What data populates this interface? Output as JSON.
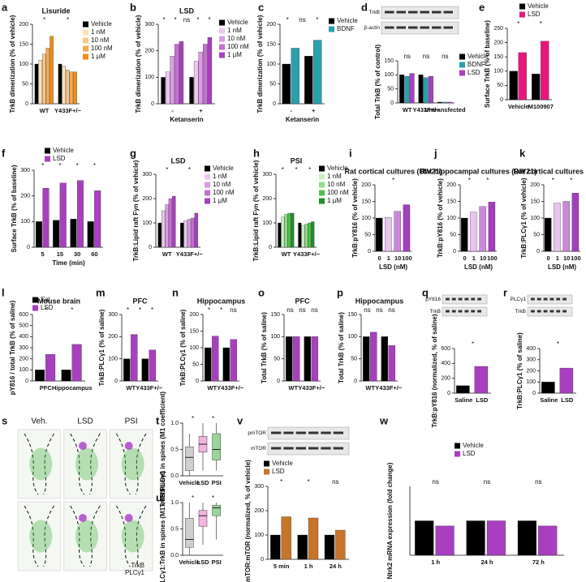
{
  "chart_data": [
    {
      "panel": "a",
      "type": "bar",
      "title": "Lisuride",
      "title_color": "#f28c1a",
      "ylabel": "TrkB dimerization (% of vehicle)",
      "categories": [
        "WT",
        "Y433F+/−"
      ],
      "series": [
        {
          "name": "Vehicle",
          "color": "#000000",
          "values": [
            100,
            100
          ]
        },
        {
          "name": "1 nM",
          "color": "#fde2b8",
          "values": [
            110,
            95
          ]
        },
        {
          "name": "10 nM",
          "color": "#fbc88a",
          "values": [
            125,
            85
          ]
        },
        {
          "name": "100 nM",
          "color": "#f7a94e",
          "values": [
            140,
            80
          ]
        },
        {
          "name": "1 µM",
          "color": "#f28c1a",
          "values": [
            170,
            80
          ]
        }
      ],
      "ylim": [
        0,
        200
      ],
      "yticks": [
        0,
        50,
        100,
        150,
        200
      ],
      "annotations": [
        "*",
        "*"
      ]
    },
    {
      "panel": "b",
      "type": "bar",
      "title": "LSD",
      "title_color": "#a020c0",
      "ylabel": "TrkB dimerization (% of vehicle)",
      "xlabel": "Ketanserin",
      "xlabel_color": "#d0202a",
      "categories": [
        "-",
        "+"
      ],
      "series": [
        {
          "name": "Vehicle",
          "color": "#000000",
          "values": [
            100,
            100
          ]
        },
        {
          "name": "1 nM",
          "color": "#ecc8f0",
          "values": [
            120,
            160
          ]
        },
        {
          "name": "10 nM",
          "color": "#dc9be4",
          "values": [
            180,
            195
          ]
        },
        {
          "name": "100 nM",
          "color": "#c66fd4",
          "values": [
            225,
            225
          ]
        },
        {
          "name": "1 µM",
          "color": "#a83fbf",
          "values": [
            235,
            250
          ]
        }
      ],
      "ylim": [
        0,
        300
      ],
      "yticks": [
        0,
        100,
        200,
        300
      ],
      "annotations": [
        "*",
        "*",
        "ns",
        "*",
        "*"
      ]
    },
    {
      "panel": "c",
      "type": "bar",
      "ylabel": "TrkB dimerization (% of vehicle)",
      "xlabel": "Ketanserin",
      "xlabel_color": "#d0202a",
      "categories": [
        "-",
        "+"
      ],
      "series": [
        {
          "name": "Vehicle",
          "color": "#000000",
          "values": [
            100,
            120
          ]
        },
        {
          "name": "BDNF",
          "color": "#2a9fae",
          "values": [
            140,
            160
          ]
        }
      ],
      "ylim": [
        0,
        200
      ],
      "yticks": [
        0,
        50,
        100,
        150,
        200
      ],
      "annotations": [
        "*",
        "ns",
        "*"
      ]
    },
    {
      "panel": "d",
      "type": "bar",
      "ylabel": "Total TrkB (% of control)",
      "blot_labels": [
        "TrkB",
        "β-actin"
      ],
      "categories": [
        "WT",
        "Y433F+/−",
        "Untransfected"
      ],
      "series": [
        {
          "name": "Vehicle",
          "color": "#000000",
          "values": [
            100,
            100,
            3
          ]
        },
        {
          "name": "BDNF",
          "color": "#2a9fae",
          "values": [
            95,
            90,
            3
          ]
        },
        {
          "name": "LSD",
          "color": "#a83fbf",
          "values": [
            105,
            95,
            3
          ]
        }
      ],
      "ylim": [
        0,
        150
      ],
      "yticks": [
        0,
        50,
        100,
        150
      ],
      "annotations": [
        "ns",
        "ns",
        "ns"
      ]
    },
    {
      "panel": "e",
      "type": "bar",
      "ylabel": "Surface TrkB (% of baseline)",
      "categories": [
        "Vehicle",
        "M100907"
      ],
      "series": [
        {
          "name": "Vehicle",
          "color": "#000000",
          "values": [
            100,
            90
          ]
        },
        {
          "name": "LSD",
          "color": "#e6177a",
          "values": [
            165,
            205
          ]
        }
      ],
      "ylim": [
        0,
        250
      ],
      "yticks": [
        0,
        50,
        100,
        150,
        200,
        250
      ],
      "annotations": [
        "*",
        "*"
      ]
    },
    {
      "panel": "f",
      "type": "bar",
      "ylabel": "Surface TrkB (% of baseline)",
      "xlabel": "Time (min)",
      "categories": [
        "5",
        "15",
        "30",
        "60"
      ],
      "series": [
        {
          "name": "Vehicle",
          "color": "#000000",
          "values": [
            100,
            105,
            110,
            100
          ]
        },
        {
          "name": "LSD",
          "color": "#a83fbf",
          "values": [
            230,
            250,
            260,
            220
          ]
        }
      ],
      "ylim": [
        0,
        300
      ],
      "yticks": [
        0,
        100,
        200,
        300
      ],
      "annotations": [
        "*",
        "*",
        "*",
        "*"
      ]
    },
    {
      "panel": "g",
      "type": "bar",
      "title": "LSD",
      "title_color": "#a020c0",
      "ylabel": "TrkB:Lipid raft Fyn (% of vehicle)",
      "categories": [
        "WT",
        "Y433F+/−"
      ],
      "series": [
        {
          "name": "Vehicle",
          "color": "#000000",
          "values": [
            100,
            100
          ]
        },
        {
          "name": "1 nM",
          "color": "#ecc8f0",
          "values": [
            150,
            110
          ]
        },
        {
          "name": "10 nM",
          "color": "#dc9be4",
          "values": [
            175,
            115
          ]
        },
        {
          "name": "100 nM",
          "color": "#c66fd4",
          "values": [
            200,
            120
          ]
        },
        {
          "name": "1 µM",
          "color": "#a83fbf",
          "values": [
            210,
            140
          ]
        }
      ],
      "ylim": [
        0,
        300
      ],
      "yticks": [
        0,
        100,
        200,
        300
      ],
      "annotations": [
        "*",
        "*"
      ]
    },
    {
      "panel": "h",
      "type": "bar",
      "title": "PSI",
      "title_color": "#2a9a2a",
      "ylabel": "TrkB:Lipid raft Fyn (% of vehicle)",
      "categories": [
        "WT",
        "Y433F+/−"
      ],
      "series": [
        {
          "name": "Vehicle",
          "color": "#000000",
          "values": [
            100,
            100
          ]
        },
        {
          "name": "1 nM",
          "color": "#c9efc2",
          "values": [
            125,
            90
          ]
        },
        {
          "name": "10 nM",
          "color": "#8ede84",
          "values": [
            135,
            95
          ]
        },
        {
          "name": "100 nM",
          "color": "#4cc14a",
          "values": [
            140,
            100
          ]
        },
        {
          "name": "1 µM",
          "color": "#1f8f2a",
          "values": [
            140,
            105
          ]
        }
      ],
      "ylim": [
        0,
        300
      ],
      "yticks": [
        0,
        100,
        200,
        300
      ],
      "annotations": [
        "*",
        "*",
        "*"
      ]
    },
    {
      "panel": "i",
      "type": "bar",
      "title": "Rat cortical cultures (DIV21)",
      "ylabel": "TrkB:pY816 (% of vehicle)",
      "xlabel": "LSD (nM)",
      "categories": [
        "0",
        "1",
        "10",
        "100"
      ],
      "series": [
        {
          "colors": [
            "#000000",
            "#e8c4ef",
            "#cc88db",
            "#a23ebf"
          ],
          "values": [
            100,
            102,
            120,
            140
          ]
        }
      ],
      "ylim": [
        0,
        200
      ],
      "yticks": [
        0,
        50,
        100,
        150,
        200
      ],
      "annotations": [
        "*"
      ]
    },
    {
      "panel": "j",
      "type": "bar",
      "title": "Rat hippocampal cultures (DIV21)",
      "ylabel": "TrkB:pY816 (% of vehicle)",
      "xlabel": "LSD (nM)",
      "categories": [
        "0",
        "1",
        "10",
        "100"
      ],
      "series": [
        {
          "colors": [
            "#000000",
            "#e8c4ef",
            "#cc88db",
            "#a23ebf"
          ],
          "values": [
            100,
            118,
            135,
            148
          ]
        }
      ],
      "ylim": [
        0,
        200
      ],
      "yticks": [
        0,
        50,
        100,
        150,
        200
      ],
      "annotations": [
        "*",
        "*"
      ]
    },
    {
      "panel": "k",
      "type": "bar",
      "title": "Rat cortical cultures (DIV21)",
      "ylabel": "TrkB:PLCγ1 (% of vehicle)",
      "xlabel": "LSD (nM)",
      "categories": [
        "0",
        "1",
        "10",
        "100"
      ],
      "series": [
        {
          "colors": [
            "#000000",
            "#e8c4ef",
            "#cc88db",
            "#a23ebf"
          ],
          "values": [
            100,
            145,
            150,
            175
          ]
        }
      ],
      "ylim": [
        0,
        200
      ],
      "yticks": [
        0,
        50,
        100,
        150,
        200
      ],
      "annotations": [
        "*",
        "*"
      ]
    },
    {
      "panel": "l",
      "type": "bar",
      "title": "Mouse brain",
      "ylabel": "pY816 / total TrkB (% of saline)",
      "categories": [
        "PFC",
        "Hippocampus"
      ],
      "series": [
        {
          "name": "Sal.",
          "color": "#000000",
          "values": [
            100,
            100
          ]
        },
        {
          "name": "LSD",
          "color": "#a83fbf",
          "values": [
            240,
            330
          ]
        }
      ],
      "ylim": [
        0,
        600
      ],
      "yticks": [
        0,
        100,
        200,
        300,
        400,
        500,
        600
      ],
      "annotations": [
        "*",
        "*"
      ]
    },
    {
      "panel": "m",
      "type": "bar",
      "title": "PFC",
      "ylabel": "TrkB:PLCγ1 (% of saline)",
      "categories": [
        "WT",
        "Y433F+/−"
      ],
      "series": [
        {
          "color": "#000000",
          "values": [
            100,
            100
          ]
        },
        {
          "color": "#a83fbf",
          "values": [
            210,
            140
          ]
        }
      ],
      "ylim": [
        0,
        300
      ],
      "yticks": [
        0,
        100,
        200,
        300
      ],
      "annotations": [
        "*",
        "*",
        "*"
      ]
    },
    {
      "panel": "n",
      "type": "bar",
      "title": "Hippocampus",
      "ylabel": "TrkB:PLCγ1 (% of saline)",
      "categories": [
        "WT",
        "Y433F+/−"
      ],
      "series": [
        {
          "color": "#000000",
          "values": [
            100,
            100
          ]
        },
        {
          "color": "#a83fbf",
          "values": [
            135,
            125
          ]
        }
      ],
      "ylim": [
        0,
        200
      ],
      "yticks": [
        0,
        50,
        100,
        150,
        200
      ],
      "annotations": [
        "*",
        "*",
        "ns"
      ]
    },
    {
      "panel": "o",
      "type": "bar",
      "title": "PFC",
      "ylabel": "Total TrkB (% of saline)",
      "categories": [
        "WT",
        "Y433F+/−"
      ],
      "series": [
        {
          "color": "#000000",
          "values": [
            100,
            100
          ]
        },
        {
          "color": "#a83fbf",
          "values": [
            100,
            100
          ]
        }
      ],
      "ylim": [
        0,
        150
      ],
      "yticks": [
        0,
        50,
        100,
        150
      ],
      "annotations": [
        "ns",
        "ns",
        "ns"
      ]
    },
    {
      "panel": "p",
      "type": "bar",
      "title": "Hippocampus",
      "ylabel": "Total TrkB (% of saline)",
      "categories": [
        "WT",
        "Y433F+/−"
      ],
      "series": [
        {
          "color": "#000000",
          "values": [
            100,
            100
          ]
        },
        {
          "color": "#a83fbf",
          "values": [
            110,
            80
          ]
        }
      ],
      "ylim": [
        0,
        150
      ],
      "yticks": [
        0,
        50,
        100,
        150
      ],
      "annotations": [
        "ns",
        "ns",
        "ns"
      ]
    },
    {
      "panel": "q",
      "type": "bar",
      "ylabel": "TrkB:pY816 (normalized, % of saline)",
      "blot_labels": [
        "pY816",
        "TrkB"
      ],
      "categories": [
        "Saline",
        "LSD"
      ],
      "series": [
        {
          "colors": [
            "#000000",
            "#a83fbf"
          ],
          "values": [
            100,
            360
          ]
        }
      ],
      "ylim": [
        0,
        600
      ],
      "yticks": [
        0,
        200,
        400,
        600
      ],
      "annotations": [
        "*"
      ]
    },
    {
      "panel": "r",
      "type": "bar",
      "ylabel": "TrkB:PLCγ1 (% of saline)",
      "blot_labels": [
        "PLCγ1",
        "TrkB"
      ],
      "categories": [
        "Saline",
        "LSD"
      ],
      "series": [
        {
          "colors": [
            "#000000",
            "#a83fbf"
          ],
          "values": [
            100,
            225
          ]
        }
      ],
      "ylim": [
        0,
        400
      ],
      "yticks": [
        0,
        100,
        200,
        300,
        400
      ],
      "annotations": [
        "*"
      ]
    },
    {
      "panel": "s",
      "type": "image",
      "columns": [
        "Veh.",
        "LSD",
        "PSI"
      ],
      "channels": [
        {
          "name": "TrkB",
          "color": "#3fae3f"
        },
        {
          "name": "PLCγ1",
          "color": "#a020c0"
        }
      ]
    },
    {
      "panel": "t",
      "type": "box",
      "ylabel": "TrkB:PLCγ1 in spines (M1 coefficient)",
      "categories": [
        "Vehicle",
        "LSD",
        "PSI"
      ],
      "colors": [
        "#cfcfcf",
        "#f3b3e0",
        "#9ad69a"
      ],
      "boxes": [
        {
          "min": 0.0,
          "q1": 0.1,
          "median": 0.35,
          "q3": 0.55,
          "max": 0.8
        },
        {
          "min": 0.1,
          "q1": 0.45,
          "median": 0.6,
          "q3": 0.75,
          "max": 1.0
        },
        {
          "min": 0.1,
          "q1": 0.3,
          "median": 0.5,
          "q3": 0.8,
          "max": 1.0
        }
      ],
      "ylim": [
        0,
        1
      ],
      "yticks": [
        {
          "value": 0,
          "label": "0.0"
        },
        {
          "value": 0.5,
          "label": "0.5"
        },
        {
          "value": 1,
          "label": "1.0"
        }
      ],
      "annotations": [
        "*",
        "*"
      ]
    },
    {
      "panel": "u",
      "type": "box",
      "ylabel": "PLCγ1:TrkB in spines (M1 coefficient)",
      "categories": [
        "Vehicle",
        "LSD",
        "PSI"
      ],
      "colors": [
        "#cfcfcf",
        "#f3b3e0",
        "#9ad69a"
      ],
      "boxes": [
        {
          "min": 0.0,
          "q1": 0.15,
          "median": 0.3,
          "q3": 0.7,
          "max": 1.0
        },
        {
          "min": 0.2,
          "q1": 0.55,
          "median": 0.75,
          "q3": 0.85,
          "max": 1.0
        },
        {
          "min": 0.3,
          "q1": 0.75,
          "median": 0.9,
          "q3": 0.95,
          "max": 1.0
        }
      ],
      "ylim": [
        0,
        1
      ],
      "yticks": [
        {
          "value": 0,
          "label": "0.0"
        },
        {
          "value": 0.5,
          "label": "0.5"
        },
        {
          "value": 1,
          "label": "1.0"
        }
      ],
      "annotations": [
        "*",
        "*"
      ]
    },
    {
      "panel": "v",
      "type": "bar",
      "ylabel": "pmTOR:mTOR (normalized, % of vehicle)",
      "blot_labels": [
        "pmTOR",
        "mTOR"
      ],
      "categories": [
        "5 min",
        "1 h",
        "24 h"
      ],
      "series": [
        {
          "name": "Vehicle",
          "color": "#000000",
          "values": [
            100,
            100,
            100
          ]
        },
        {
          "name": "LSD",
          "color": "#c8742a",
          "values": [
            175,
            170,
            120
          ]
        }
      ],
      "ylim": [
        0,
        300
      ],
      "yticks": [
        0,
        100,
        200,
        300
      ],
      "annotations": [
        "*",
        "*",
        "ns"
      ]
    },
    {
      "panel": "w",
      "type": "bar",
      "ylabel": "Ntrk2 mRNA expression (fold change)",
      "categories": [
        "1 h",
        "24 h",
        "72 h"
      ],
      "series": [
        {
          "name": "Vehicle",
          "color": "#000000",
          "values": [
            1.0,
            1.0,
            1.0
          ]
        },
        {
          "name": "LSD",
          "color": "#a83fbf",
          "values": [
            0.85,
            1.0,
            0.85
          ]
        }
      ],
      "ylim": [
        0,
        2
      ],
      "annotations": [
        "ns",
        "ns",
        "ns"
      ]
    }
  ]
}
